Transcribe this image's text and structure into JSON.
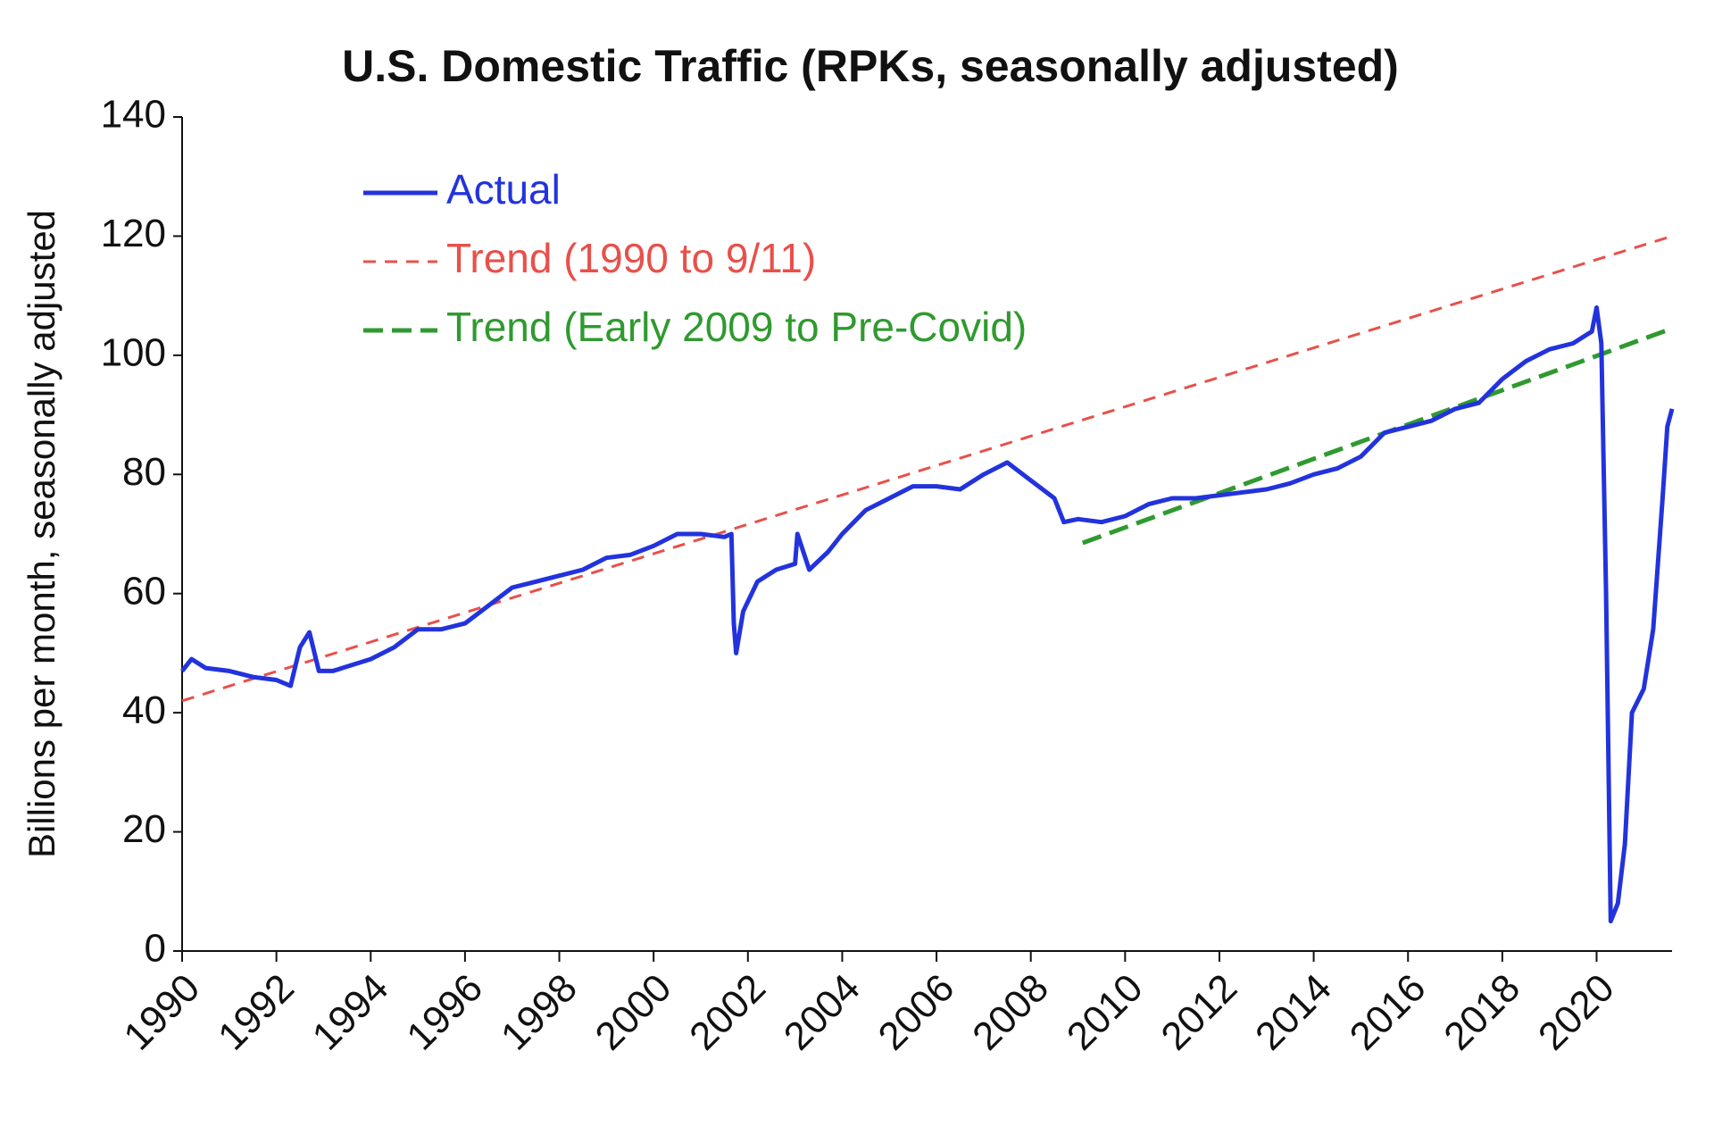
{
  "chart_data": {
    "type": "line",
    "title": "U.S. Domestic Traffic (RPKs, seasonally adjusted)",
    "y_label": "Billions per month, seasonally adjusted",
    "xlim": [
      1990,
      2021.6
    ],
    "xticks": [
      1990,
      1992,
      1994,
      1996,
      1998,
      2000,
      2002,
      2004,
      2006,
      2008,
      2010,
      2012,
      2014,
      2016,
      2018,
      2020
    ],
    "ylim": [
      0,
      140
    ],
    "yticks": [
      0,
      20,
      40,
      60,
      80,
      100,
      120,
      140
    ],
    "legend": "upper left",
    "series": [
      {
        "name": "Actual",
        "color": "#2233dd",
        "dash": "solid",
        "x": [
          1990.0,
          1990.2,
          1990.5,
          1991.0,
          1991.5,
          1992.0,
          1992.3,
          1992.5,
          1992.7,
          1992.9,
          1993.2,
          1993.6,
          1994.0,
          1994.5,
          1995.0,
          1995.5,
          1996.0,
          1996.5,
          1997.0,
          1997.5,
          1998.0,
          1998.5,
          1999.0,
          1999.5,
          2000.0,
          2000.5,
          2001.0,
          2001.5,
          2001.65,
          2001.7,
          2001.75,
          2001.9,
          2002.2,
          2002.6,
          2003.0,
          2003.05,
          2003.3,
          2003.7,
          2004.0,
          2004.5,
          2005.0,
          2005.5,
          2006.0,
          2006.5,
          2007.0,
          2007.5,
          2008.0,
          2008.5,
          2008.7,
          2009.0,
          2009.5,
          2010.0,
          2010.5,
          2011.0,
          2011.5,
          2012.0,
          2012.5,
          2013.0,
          2013.5,
          2014.0,
          2014.5,
          2015.0,
          2015.5,
          2016.0,
          2016.5,
          2017.0,
          2017.5,
          2018.0,
          2018.5,
          2019.0,
          2019.5,
          2019.9,
          2020.0,
          2020.1,
          2020.2,
          2020.3,
          2020.45,
          2020.6,
          2020.75,
          2021.0,
          2021.2,
          2021.4,
          2021.5,
          2021.6
        ],
        "values": [
          47,
          49,
          47.5,
          47,
          46,
          45.5,
          44.5,
          51,
          53.5,
          47,
          47,
          48,
          49,
          51,
          54,
          54,
          55,
          58,
          61,
          62,
          63,
          64,
          66,
          66.5,
          68,
          70,
          70,
          69.5,
          70,
          55,
          50,
          57,
          62,
          64,
          65,
          70,
          64,
          67,
          70,
          74,
          76,
          78,
          78,
          77.5,
          80,
          82,
          79,
          76,
          72,
          72.5,
          72,
          73,
          75,
          76,
          76,
          76.5,
          77,
          77.5,
          78.5,
          80,
          81,
          83,
          87,
          88,
          89,
          91,
          92,
          96,
          99,
          101,
          102,
          104,
          108,
          102,
          60,
          5,
          8,
          18,
          40,
          44,
          54,
          76,
          88,
          91
        ]
      },
      {
        "name": "Trend (1990 to 9/11)",
        "color": "#e8504a",
        "dash": "short",
        "x": [
          1990,
          2021.6
        ],
        "values": [
          42,
          120
        ]
      },
      {
        "name": "Trend (Early 2009 to Pre-Covid)",
        "color": "#2f9a2f",
        "dash": "long",
        "x": [
          2009.1,
          2021.6
        ],
        "values": [
          68.5,
          104.5
        ]
      }
    ]
  }
}
